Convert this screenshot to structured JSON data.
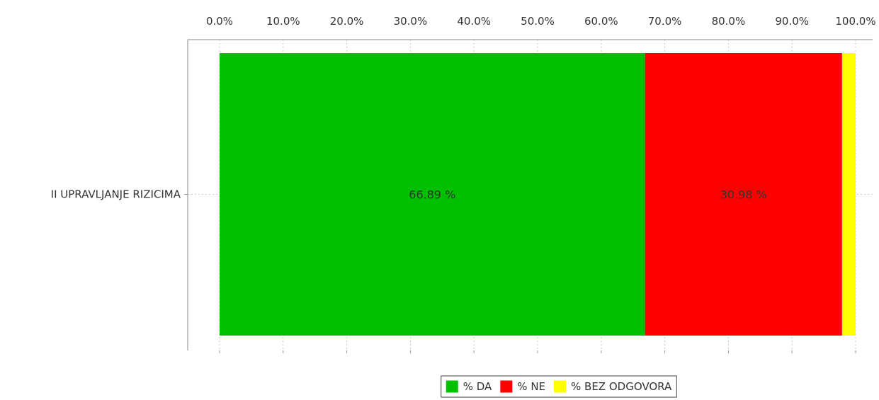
{
  "chart_data": {
    "type": "bar",
    "orientation": "horizontal",
    "stacked": true,
    "categories": [
      "II UPRAVLJANJE RIZICIMA"
    ],
    "series": [
      {
        "name": "% DA",
        "values": [
          66.89
        ],
        "label": "66.89 %",
        "color": "#00c000"
      },
      {
        "name": "% NE",
        "values": [
          30.98
        ],
        "label": "30.98 %",
        "color": "#ff0000"
      },
      {
        "name": "% BEZ ODGOVORA",
        "values": [
          2.13
        ],
        "label": "",
        "color": "#ffff00"
      }
    ],
    "xlim": [
      0,
      100
    ],
    "x_ticks": [
      0,
      10,
      20,
      30,
      40,
      50,
      60,
      70,
      80,
      90,
      100
    ],
    "x_tick_labels": [
      "0.0%",
      "10.0%",
      "20.0%",
      "30.0%",
      "40.0%",
      "50.0%",
      "60.0%",
      "70.0%",
      "80.0%",
      "90.0%",
      "100.0%"
    ],
    "x_axis_position": "top",
    "grid": true,
    "legend_position": "bottom",
    "title": "",
    "xlabel": "",
    "ylabel": ""
  }
}
